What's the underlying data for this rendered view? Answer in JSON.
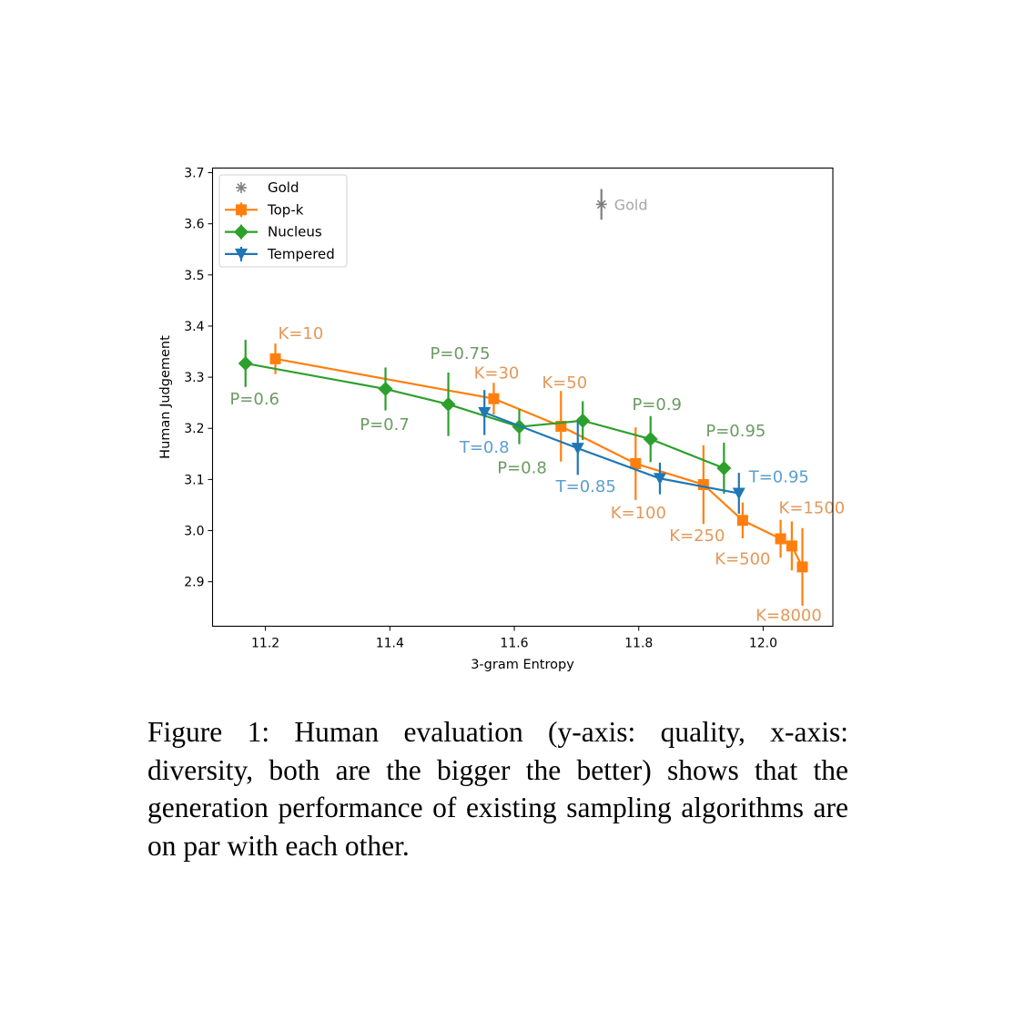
{
  "caption": "Figure 1: Human evaluation (y-axis: quality, x-axis: diversity, both are the bigger the better) shows that the generation performance of existing sampling algo­rithms are on par with each other.",
  "chart_data": {
    "type": "line",
    "title": "",
    "xlabel": "3-gram Entropy",
    "ylabel": "Human Judgement",
    "xlim": [
      11.115,
      12.112
    ],
    "ylim": [
      2.813,
      3.709
    ],
    "xticks": [
      11.2,
      11.4,
      11.6,
      11.8,
      12.0
    ],
    "xtick_labels": [
      "11.2",
      "11.4",
      "11.6",
      "11.8",
      "12.0"
    ],
    "yticks": [
      2.9,
      3.0,
      3.1,
      3.2,
      3.3,
      3.4,
      3.5,
      3.6,
      3.7
    ],
    "ytick_labels": [
      "2.9",
      "3.0",
      "3.1",
      "3.2",
      "3.3",
      "3.4",
      "3.5",
      "3.6",
      "3.7"
    ],
    "grid": false,
    "legend_position": "top-left",
    "series": [
      {
        "name": "Gold",
        "marker": "star",
        "color": "#7f7f7f",
        "label_color": "#a6a6a6",
        "connected": false,
        "points": [
          {
            "x": 11.74,
            "y": 3.638,
            "err": 0.03,
            "label": "Gold"
          }
        ]
      },
      {
        "name": "Top-k",
        "marker": "square",
        "color": "#ff7f0e",
        "label_color": "#e3995a",
        "connected": true,
        "points": [
          {
            "x": 11.216,
            "y": 3.336,
            "err": 0.03,
            "label": "K=10"
          },
          {
            "x": 11.567,
            "y": 3.258,
            "err": 0.031,
            "label": "K=30"
          },
          {
            "x": 11.675,
            "y": 3.204,
            "err": 0.069,
            "label": "K=50"
          },
          {
            "x": 11.795,
            "y": 3.131,
            "err": 0.071,
            "label": "K=100"
          },
          {
            "x": 11.904,
            "y": 3.09,
            "err": 0.077,
            "label": "K=250"
          },
          {
            "x": 11.967,
            "y": 3.02,
            "err": 0.035,
            "label": "K=500"
          },
          {
            "x": 12.028,
            "y": 2.984,
            "err": 0.037,
            "label": ""
          },
          {
            "x": 12.046,
            "y": 2.97,
            "err": 0.048,
            "label": "K=1500"
          },
          {
            "x": 12.063,
            "y": 2.929,
            "err": 0.076,
            "label": "K=8000"
          }
        ]
      },
      {
        "name": "Nucleus",
        "marker": "diamond",
        "color": "#2ca02c",
        "label_color": "#6b9b63",
        "connected": true,
        "points": [
          {
            "x": 11.168,
            "y": 3.327,
            "err": 0.046,
            "label": "P=0.6"
          },
          {
            "x": 11.393,
            "y": 3.277,
            "err": 0.042,
            "label": "P=0.7"
          },
          {
            "x": 11.494,
            "y": 3.247,
            "err": 0.062,
            "label": "P=0.75"
          },
          {
            "x": 11.608,
            "y": 3.203,
            "err": 0.034,
            "label": "P=0.8"
          },
          {
            "x": 11.71,
            "y": 3.215,
            "err": 0.038,
            "label": ""
          },
          {
            "x": 11.819,
            "y": 3.179,
            "err": 0.045,
            "label": "P=0.9"
          },
          {
            "x": 11.937,
            "y": 3.122,
            "err": 0.05,
            "label": "P=0.95"
          }
        ]
      },
      {
        "name": "Tempered",
        "marker": "triangle-down",
        "color": "#1f77b4",
        "label_color": "#5a9fcf",
        "connected": true,
        "points": [
          {
            "x": 11.552,
            "y": 3.231,
            "err": 0.044,
            "label": "T=0.8"
          },
          {
            "x": 11.702,
            "y": 3.161,
            "err": 0.052,
            "label": "T=0.85"
          },
          {
            "x": 11.834,
            "y": 3.102,
            "err": 0.031,
            "label": ""
          },
          {
            "x": 11.961,
            "y": 3.073,
            "err": 0.04,
            "label": "T=0.95"
          }
        ]
      }
    ]
  }
}
